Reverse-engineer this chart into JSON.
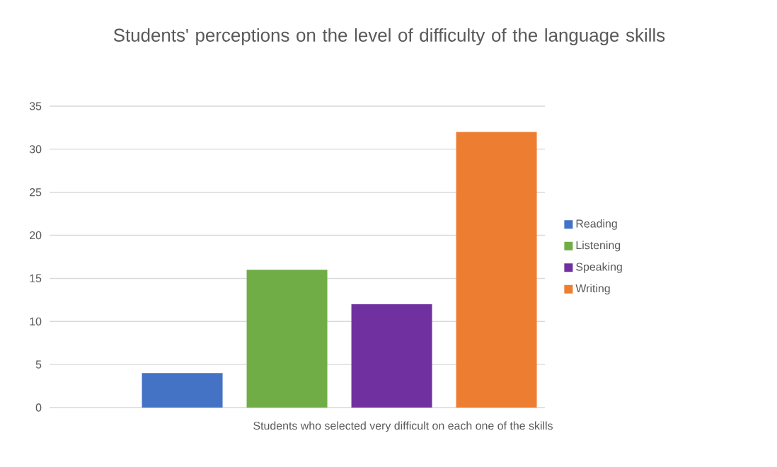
{
  "chart_data": {
    "type": "bar",
    "title": "Students' perceptions on the level of difficulty of the language skills",
    "categories": [
      "Students who selected very difficult on each one of the skills"
    ],
    "series": [
      {
        "name": "Reading",
        "color": "#4472c4",
        "values": [
          4
        ]
      },
      {
        "name": "Listening",
        "color": "#70ad47",
        "values": [
          16
        ]
      },
      {
        "name": "Speaking",
        "color": "#7030a0",
        "values": [
          12
        ]
      },
      {
        "name": "Writing",
        "color": "#ed7d31",
        "values": [
          32
        ]
      }
    ],
    "ylim": [
      0,
      35
    ],
    "yticks": [
      0,
      5,
      10,
      15,
      20,
      25,
      30,
      35
    ],
    "grid": "y",
    "legend": "right"
  }
}
